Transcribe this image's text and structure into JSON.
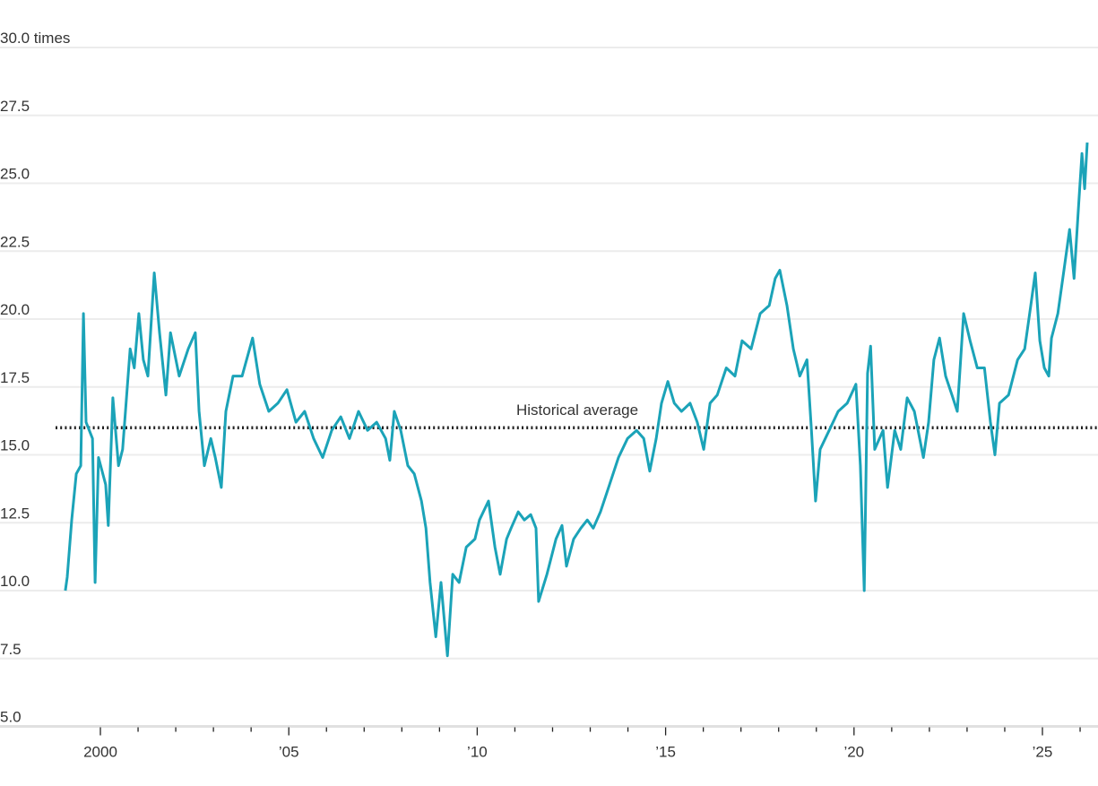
{
  "chart_data": {
    "type": "line",
    "title": "",
    "xlabel": "",
    "ylabel": "",
    "y_unit_label": "30.0 times",
    "ylim": [
      5.0,
      30.0
    ],
    "xlim": [
      1999,
      2026.3
    ],
    "grid": "horizontal",
    "y_ticks": [
      {
        "value": 30.0,
        "label": "30.0 times"
      },
      {
        "value": 27.5,
        "label": "27.5"
      },
      {
        "value": 25.0,
        "label": "25.0"
      },
      {
        "value": 22.5,
        "label": "22.5"
      },
      {
        "value": 20.0,
        "label": "20.0"
      },
      {
        "value": 17.5,
        "label": "17.5"
      },
      {
        "value": 15.0,
        "label": "15.0"
      },
      {
        "value": 12.5,
        "label": "12.5"
      },
      {
        "value": 10.0,
        "label": "10.0"
      },
      {
        "value": 7.5,
        "label": "7.5"
      },
      {
        "value": 5.0,
        "label": "5.0"
      }
    ],
    "x_ticks": [
      {
        "value": 2000,
        "label": "2000"
      },
      {
        "value": 2005,
        "label": "’05"
      },
      {
        "value": 2010,
        "label": "’10"
      },
      {
        "value": 2015,
        "label": "’15"
      },
      {
        "value": 2020,
        "label": "’20"
      },
      {
        "value": 2025,
        "label": "’25"
      }
    ],
    "reference_line": {
      "label": "Historical average",
      "value": 16.0,
      "style": "dotted",
      "color": "#222222"
    },
    "series": [
      {
        "color": "#1ba3b8",
        "x": [
          1999.07,
          1999.12,
          1999.24,
          1999.36,
          1999.48,
          1999.55,
          1999.62,
          1999.79,
          1999.86,
          1999.95,
          2000.14,
          2000.21,
          2000.33,
          2000.48,
          2000.59,
          2000.79,
          2000.9,
          2001.02,
          2001.14,
          2001.26,
          2001.43,
          2001.57,
          2001.74,
          2001.86,
          2002.09,
          2002.33,
          2002.52,
          2002.62,
          2002.76,
          2002.93,
          2003.05,
          2003.21,
          2003.33,
          2003.52,
          2003.76,
          2004.04,
          2004.23,
          2004.47,
          2004.71,
          2004.95,
          2005.19,
          2005.42,
          2005.66,
          2005.9,
          2006.14,
          2006.38,
          2006.61,
          2006.85,
          2007.09,
          2007.33,
          2007.57,
          2007.68,
          2007.8,
          2007.97,
          2008.16,
          2008.33,
          2008.52,
          2008.64,
          2008.75,
          2008.9,
          2009.04,
          2009.21,
          2009.35,
          2009.52,
          2009.71,
          2009.94,
          2010.06,
          2010.3,
          2010.47,
          2010.61,
          2010.78,
          2010.9,
          2011.09,
          2011.25,
          2011.42,
          2011.56,
          2011.63,
          2011.85,
          2012.09,
          2012.25,
          2012.37,
          2012.56,
          2012.75,
          2012.92,
          2013.08,
          2013.27,
          2013.51,
          2013.75,
          2013.99,
          2014.23,
          2014.42,
          2014.58,
          2014.75,
          2014.89,
          2015.06,
          2015.23,
          2015.42,
          2015.65,
          2015.84,
          2016.01,
          2016.18,
          2016.37,
          2016.61,
          2016.84,
          2017.03,
          2017.27,
          2017.51,
          2017.75,
          2017.91,
          2018.03,
          2018.22,
          2018.39,
          2018.56,
          2018.75,
          2018.87,
          2018.98,
          2019.1,
          2019.34,
          2019.58,
          2019.82,
          2020.05,
          2020.17,
          2020.27,
          2020.36,
          2020.44,
          2020.55,
          2020.77,
          2020.89,
          2021.08,
          2021.24,
          2021.41,
          2021.6,
          2021.84,
          2021.98,
          2022.12,
          2022.27,
          2022.43,
          2022.6,
          2022.74,
          2022.91,
          2023.08,
          2023.27,
          2023.46,
          2023.62,
          2023.74,
          2023.86,
          2024.1,
          2024.34,
          2024.53,
          2024.69,
          2024.81,
          2024.93,
          2025.05,
          2025.17,
          2025.24,
          2025.41,
          2025.57,
          2025.72,
          2025.84,
          2025.96,
          2026.05,
          2026.12,
          2026.19
        ],
        "y": [
          10.0,
          10.5,
          12.6,
          14.3,
          14.6,
          20.2,
          16.2,
          15.6,
          10.3,
          14.9,
          13.9,
          12.4,
          17.1,
          14.6,
          15.2,
          18.9,
          18.2,
          20.2,
          18.5,
          17.9,
          21.7,
          19.5,
          17.2,
          19.5,
          17.9,
          18.9,
          19.5,
          16.6,
          14.6,
          15.6,
          14.9,
          13.8,
          16.6,
          17.9,
          17.9,
          19.3,
          17.6,
          16.6,
          16.9,
          17.4,
          16.2,
          16.6,
          15.6,
          14.9,
          15.9,
          16.4,
          15.6,
          16.6,
          15.9,
          16.2,
          15.6,
          14.8,
          16.6,
          15.9,
          14.6,
          14.3,
          13.3,
          12.3,
          10.3,
          8.3,
          10.3,
          7.6,
          10.6,
          10.3,
          11.6,
          11.9,
          12.6,
          13.3,
          11.6,
          10.6,
          11.9,
          12.3,
          12.9,
          12.6,
          12.8,
          12.3,
          9.6,
          10.6,
          11.9,
          12.4,
          10.9,
          11.9,
          12.3,
          12.6,
          12.3,
          12.9,
          13.9,
          14.9,
          15.6,
          15.9,
          15.6,
          14.4,
          15.6,
          16.9,
          17.7,
          16.9,
          16.6,
          16.9,
          16.2,
          15.2,
          16.9,
          17.2,
          18.2,
          17.9,
          19.2,
          18.9,
          20.2,
          20.5,
          21.5,
          21.8,
          20.5,
          18.9,
          17.9,
          18.5,
          15.9,
          13.3,
          15.2,
          15.9,
          16.6,
          16.9,
          17.6,
          14.6,
          10.0,
          18.0,
          19.0,
          15.2,
          15.9,
          13.8,
          15.9,
          15.2,
          17.1,
          16.6,
          14.9,
          16.2,
          18.5,
          19.3,
          17.9,
          17.2,
          16.6,
          20.2,
          19.2,
          18.2,
          18.2,
          16.2,
          15.0,
          16.9,
          17.2,
          18.5,
          18.9,
          20.5,
          21.7,
          19.2,
          18.2,
          17.9,
          19.3,
          20.2,
          21.8,
          23.3,
          21.5,
          24.2,
          26.1,
          24.8,
          26.5
        ]
      }
    ]
  }
}
